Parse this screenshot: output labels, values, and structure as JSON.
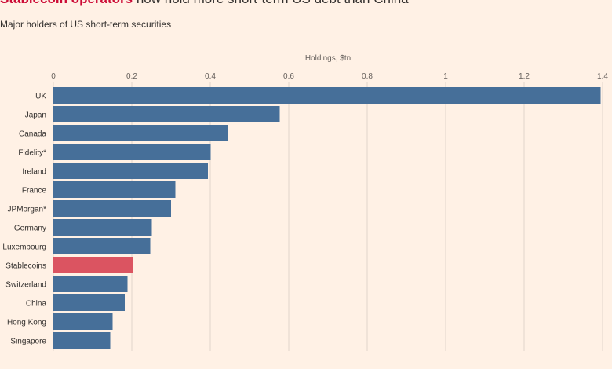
{
  "header": {
    "title_highlight": "Stablecoin operators",
    "title_rest": " now hold more short-term US debt than China",
    "subtitle": "Major holders of US short-term securities"
  },
  "chart_data": {
    "type": "bar",
    "orientation": "horizontal",
    "axis_title": "Holdings, $tn",
    "xlim": [
      0,
      1.4
    ],
    "ticks": [
      "0",
      "0.2",
      "0.4",
      "0.6",
      "0.8",
      "1",
      "1.2",
      "1.4"
    ],
    "grid": true,
    "categories": [
      "UK",
      "Japan",
      "Canada",
      "Fidelity*",
      "Ireland",
      "France",
      "JPMorgan*",
      "Germany",
      "Luxembourg",
      "Stablecoins",
      "Switzerland",
      "China",
      "Hong Kong",
      "Singapore"
    ],
    "values": [
      1.395,
      0.577,
      0.446,
      0.401,
      0.394,
      0.311,
      0.3,
      0.251,
      0.247,
      0.202,
      0.189,
      0.182,
      0.151,
      0.145
    ],
    "highlight_category": "Stablecoins",
    "colors": {
      "bar": "#466f99",
      "highlight": "#db5461",
      "grid": "#e0d5cc"
    }
  }
}
